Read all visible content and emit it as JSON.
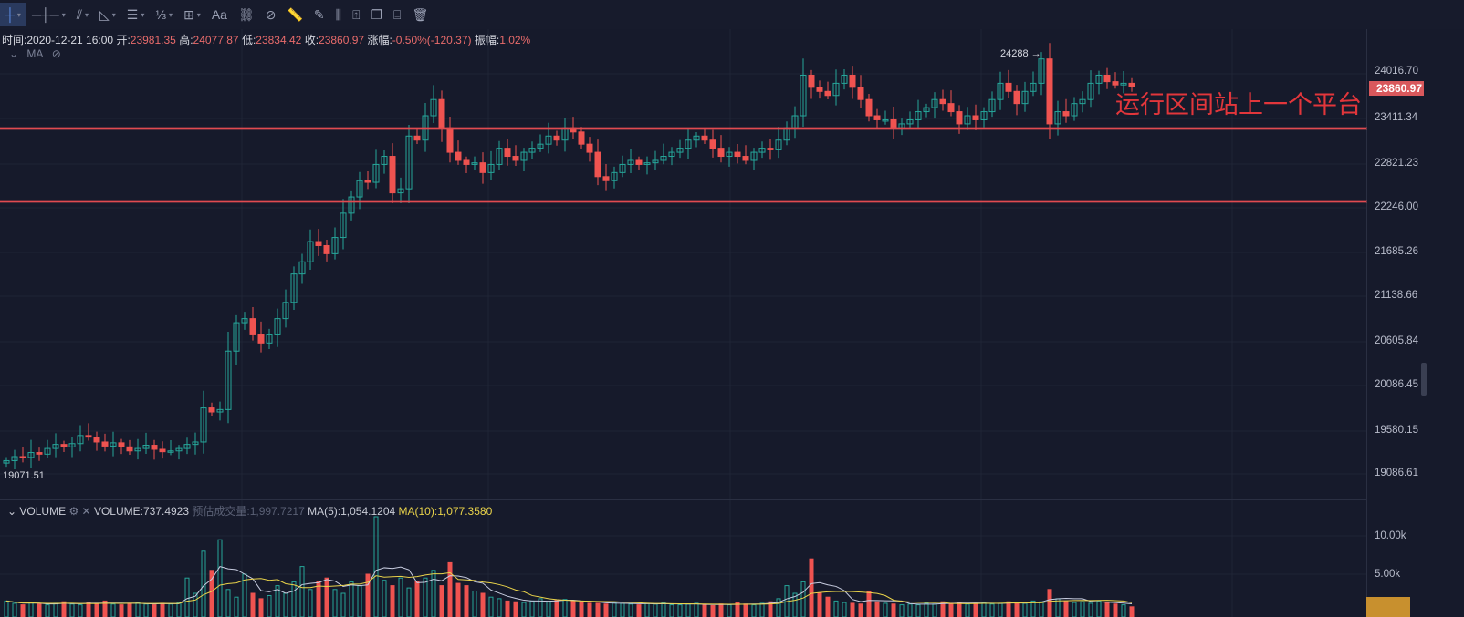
{
  "toolbar": {
    "items": [
      {
        "icon": "crosshair-icon",
        "glyph": "┼",
        "dropdown": true,
        "active": true
      },
      {
        "icon": "horizontal-line-icon",
        "glyph": "─┼─",
        "dropdown": true
      },
      {
        "icon": "trend-line-icon",
        "glyph": "⫽",
        "dropdown": true
      },
      {
        "icon": "triangle-ruler-icon",
        "glyph": "◺",
        "dropdown": true
      },
      {
        "icon": "parallel-lines-icon",
        "glyph": "☰",
        "dropdown": true
      },
      {
        "icon": "fibonacci-icon",
        "glyph": "⅓",
        "dropdown": true
      },
      {
        "icon": "grid-box-icon",
        "glyph": "⊞",
        "dropdown": true
      },
      {
        "icon": "text-icon",
        "glyph": "Aa"
      },
      {
        "icon": "pattern-icon",
        "glyph": "⛓"
      },
      {
        "icon": "magnet-icon",
        "glyph": "⊘"
      },
      {
        "icon": "ruler-icon",
        "glyph": "📏"
      },
      {
        "icon": "pencil-icon",
        "glyph": "✎"
      },
      {
        "icon": "indicator-icon",
        "glyph": "⫼"
      },
      {
        "icon": "lock-icon",
        "glyph": "⍐"
      },
      {
        "icon": "copy-icon",
        "glyph": "❐"
      },
      {
        "icon": "edit-drawings-icon",
        "glyph": "⌸"
      },
      {
        "icon": "trash-icon",
        "glyph": "🗑"
      }
    ]
  },
  "info": {
    "time_label": "时间:",
    "time": "2020-12-21 16:00",
    "open_label": "开:",
    "open": "23981.35",
    "high_label": "高:",
    "high": "24077.87",
    "low_label": "低:",
    "low": "23834.42",
    "close_label": "收:",
    "close": "23860.97",
    "change_label": "涨幅:",
    "change": "-0.50%(-120.37)",
    "amplitude_label": "振幅:",
    "amplitude": "1.02%"
  },
  "ma_legend": {
    "label": "MA",
    "chevron": "⌄",
    "hide_icon": "eye-off-icon"
  },
  "price_axis": {
    "ticks": [
      "24016.70",
      "23411.34",
      "22821.23",
      "22246.00",
      "21685.26",
      "21138.66",
      "20605.84",
      "20086.45",
      "19580.15",
      "19086.61"
    ],
    "current_price": "23860.97"
  },
  "markers": {
    "high": "24288 →",
    "low": "19071.51"
  },
  "annotation": "运行区间站上一个平台",
  "colors": {
    "up": "#26a69a",
    "down": "#ef5350",
    "level_line": "#e04b50",
    "annotation": "#e2363b",
    "ma5": "#c8cde0",
    "ma10": "#e9d34a",
    "background": "#161a2b"
  },
  "levels": [
    23343,
    22444
  ],
  "volume": {
    "title": "VOLUME",
    "value": "VOLUME:737.4923",
    "estimate": "预估成交量:1,997.7217",
    "ma5": "MA(5):1,054.1204",
    "ma10": "MA(10):1,077.3580",
    "ticks": [
      "10.00k",
      "5.00k"
    ]
  },
  "chart_data": {
    "type": "candlestick",
    "ylim": [
      19086.61,
      24016.7
    ],
    "open_first": 19220,
    "close": [
      19250,
      19300,
      19290,
      19350,
      19330,
      19400,
      19450,
      19420,
      19460,
      19560,
      19540,
      19480,
      19430,
      19470,
      19420,
      19370,
      19400,
      19440,
      19390,
      19360,
      19370,
      19400,
      19450,
      19480,
      19900,
      19850,
      19880,
      20600,
      20950,
      21000,
      20800,
      20700,
      20800,
      21000,
      21200,
      21550,
      21700,
      21950,
      21900,
      21800,
      22000,
      22300,
      22500,
      22700,
      22680,
      22900,
      23000,
      22550,
      22600,
      23250,
      23200,
      23500,
      23700,
      23350,
      23050,
      22950,
      22900,
      22920,
      22800,
      22900,
      23100,
      23000,
      22950,
      23050,
      23100,
      23150,
      23250,
      23200,
      23350,
      23300,
      23150,
      23050,
      22750,
      22700,
      22800,
      22900,
      22950,
      22900,
      22920,
      22950,
      23000,
      23050,
      23100,
      23200,
      23250,
      23200,
      23100,
      23000,
      23050,
      23000,
      22950,
      23050,
      23100,
      23080,
      23200,
      23350,
      23500,
      24000,
      23850,
      23800,
      23750,
      23900,
      24000,
      23850,
      23700,
      23500,
      23450,
      23450,
      23350,
      23400,
      23450,
      23550,
      23600,
      23700,
      23650,
      23550,
      23400,
      23500,
      23450,
      23550,
      23700,
      23900,
      23800,
      23650,
      23800,
      23900,
      24200,
      23400,
      23550,
      23500,
      23650,
      23700,
      23900,
      24000,
      23920,
      23880,
      23900,
      23860.97
    ],
    "volume": [
      1500,
      1200,
      1000,
      1300,
      1100,
      1000,
      1200,
      1400,
      1100,
      1000,
      1300,
      1200,
      1500,
      1100,
      1000,
      1200,
      1300,
      1100,
      1000,
      1200,
      1100,
      1300,
      4500,
      2500,
      8000,
      5500,
      9500,
      3000,
      2000,
      5000,
      2500,
      1800,
      2200,
      3500,
      2500,
      4000,
      6000,
      3000,
      4000,
      4500,
      3000,
      2500,
      4000,
      3500,
      5000,
      12500,
      4200,
      3500,
      4500,
      3200,
      4000,
      4500,
      5500,
      3500,
      6500,
      3800,
      3500,
      2800,
      2500,
      2000,
      1800,
      1500,
      1400,
      1300,
      1500,
      1800,
      1400,
      1600,
      1700,
      1500,
      1300,
      1200,
      1200,
      1100,
      1300,
      1200,
      1100,
      1000,
      1200,
      1100,
      1300,
      1000,
      1000,
      1100,
      1200,
      1000,
      900,
      1100,
      1000,
      1300,
      1100,
      1000,
      1200,
      1400,
      1800,
      3500,
      2500,
      4000,
      7000,
      2500,
      2000,
      1500,
      1300,
      1200,
      1100,
      2800,
      1400,
      1200,
      1100,
      1000,
      1100,
      1000,
      1200,
      1100,
      1400,
      1200,
      1300,
      1100,
      1200,
      1300,
      1100,
      1200,
      1400,
      1300,
      1200,
      1500,
      1400,
      3000,
      1800,
      1500,
      1300,
      1400,
      1200,
      1500,
      1300,
      1100,
      1000,
      737
    ]
  }
}
